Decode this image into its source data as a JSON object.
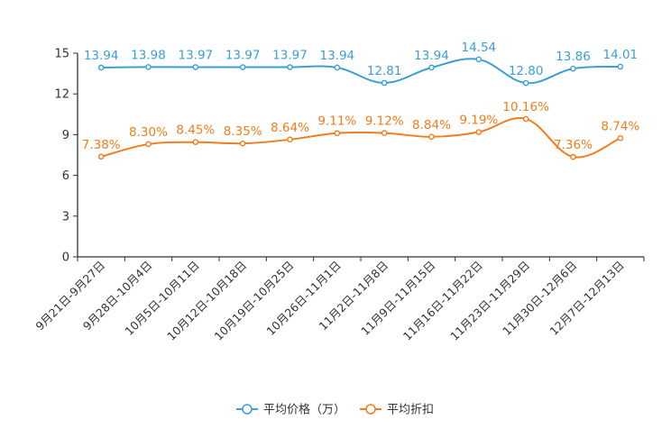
{
  "chart_data": {
    "type": "line",
    "categories": [
      "9月21日-9月27日",
      "9月28日-10月4日",
      "10月5日-10月11日",
      "10月12日-10月18日",
      "10月19日-10月25日",
      "10月26日-11月1日",
      "11月2日-11月8日",
      "11月9日-11月15日",
      "11月16日-11月22日",
      "11月23日-11月29日",
      "11月30日-12月6日",
      "12月7日-12月13日"
    ],
    "ylim": [
      0,
      15
    ],
    "yticks": [
      0,
      3,
      6,
      9,
      12,
      15
    ],
    "series": [
      {
        "name": "平均价格（万）",
        "color": "#3b9fd1",
        "values": [
          13.94,
          13.98,
          13.97,
          13.97,
          13.97,
          13.94,
          12.81,
          13.94,
          14.54,
          12.8,
          13.86,
          14.01
        ],
        "labels": [
          "13.94",
          "13.98",
          "13.97",
          "13.97",
          "13.97",
          "13.94",
          "12.81",
          "13.94",
          "14.54",
          "12.80",
          "13.86",
          "14.01"
        ]
      },
      {
        "name": "平均折扣",
        "color": "#f07c1c",
        "values": [
          7.38,
          8.3,
          8.45,
          8.35,
          8.64,
          9.11,
          9.12,
          8.84,
          9.19,
          10.16,
          7.36,
          8.74
        ],
        "labels": [
          "7.38%",
          "8.30%",
          "8.45%",
          "8.35%",
          "8.64%",
          "9.11%",
          "9.12%",
          "8.84%",
          "9.19%",
          "10.16%",
          "7.36%",
          "8.74%"
        ]
      }
    ],
    "legend": [
      "平均价格（万）",
      "平均折扣"
    ],
    "title": "",
    "xlabel": "",
    "ylabel": ""
  }
}
